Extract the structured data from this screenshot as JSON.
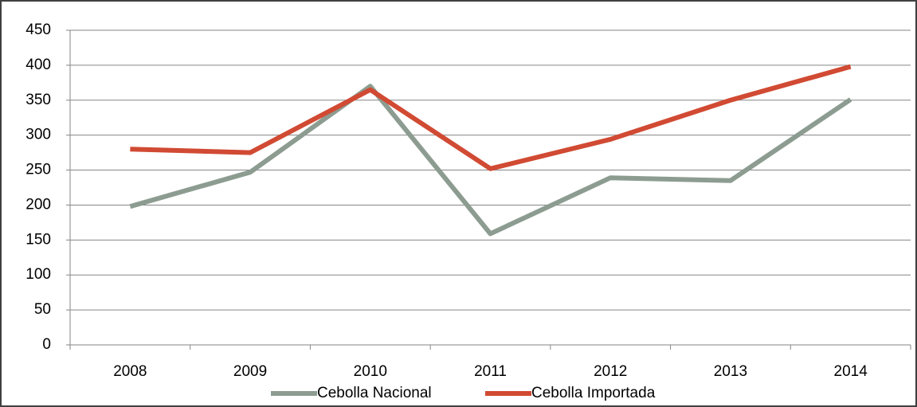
{
  "chart_data": {
    "type": "line",
    "categories": [
      "2008",
      "2009",
      "2010",
      "2011",
      "2012",
      "2013",
      "2014"
    ],
    "series": [
      {
        "name": "Cebolla Nacional",
        "color": "#8d9c91",
        "values": [
          198,
          247,
          370,
          159,
          239,
          235,
          351
        ]
      },
      {
        "name": "Cebolla Importada",
        "color": "#d14a33",
        "values": [
          280,
          275,
          365,
          252,
          294,
          350,
          398
        ]
      }
    ],
    "ylim": [
      0,
      450
    ],
    "yticks": [
      0,
      50,
      100,
      150,
      200,
      250,
      300,
      350,
      400,
      450
    ],
    "grid": true,
    "legend": "bottom"
  }
}
